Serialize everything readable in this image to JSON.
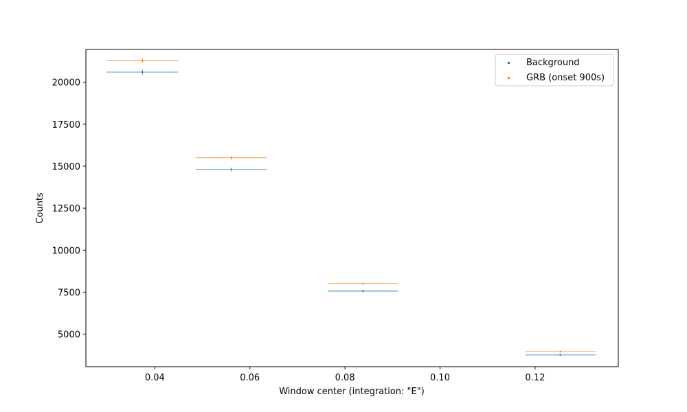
{
  "chart_data": {
    "type": "scatter",
    "xlabel": "Window center (integration: \"E\")",
    "ylabel": "Counts",
    "xlim": [
      0.0255,
      0.1375
    ],
    "ylim": [
      3060,
      21950
    ],
    "xticks": [
      0.04,
      0.06,
      0.08,
      0.1,
      0.12
    ],
    "xtick_labels": [
      "0.04",
      "0.06",
      "0.08",
      "0.10",
      "0.12"
    ],
    "yticks": [
      5000,
      7500,
      10000,
      12500,
      15000,
      17500,
      20000
    ],
    "ytick_labels": [
      "5000",
      "7500",
      "10000",
      "12500",
      "15000",
      "17500",
      "20000"
    ],
    "grid": false,
    "legend_position": "top-right",
    "series": [
      {
        "name": "Background",
        "color": "#1f77b4",
        "points": [
          {
            "x": 0.0374,
            "y": 20600,
            "xerr": 0.0075,
            "yerr": 150
          },
          {
            "x": 0.0561,
            "y": 14800,
            "xerr": 0.0075,
            "yerr": 120
          },
          {
            "x": 0.0838,
            "y": 7560,
            "xerr": 0.0074,
            "yerr": 90
          },
          {
            "x": 0.1253,
            "y": 3760,
            "xerr": 0.0074,
            "yerr": 60
          }
        ]
      },
      {
        "name": "GRB (onset 900s)",
        "color": "#ff7f0e",
        "points": [
          {
            "x": 0.0374,
            "y": 21280,
            "xerr": 0.0075,
            "yerr": 150
          },
          {
            "x": 0.0561,
            "y": 15500,
            "xerr": 0.0075,
            "yerr": 120
          },
          {
            "x": 0.0838,
            "y": 8010,
            "xerr": 0.0074,
            "yerr": 90
          },
          {
            "x": 0.1253,
            "y": 3960,
            "xerr": 0.0074,
            "yerr": 60
          }
        ]
      }
    ]
  }
}
